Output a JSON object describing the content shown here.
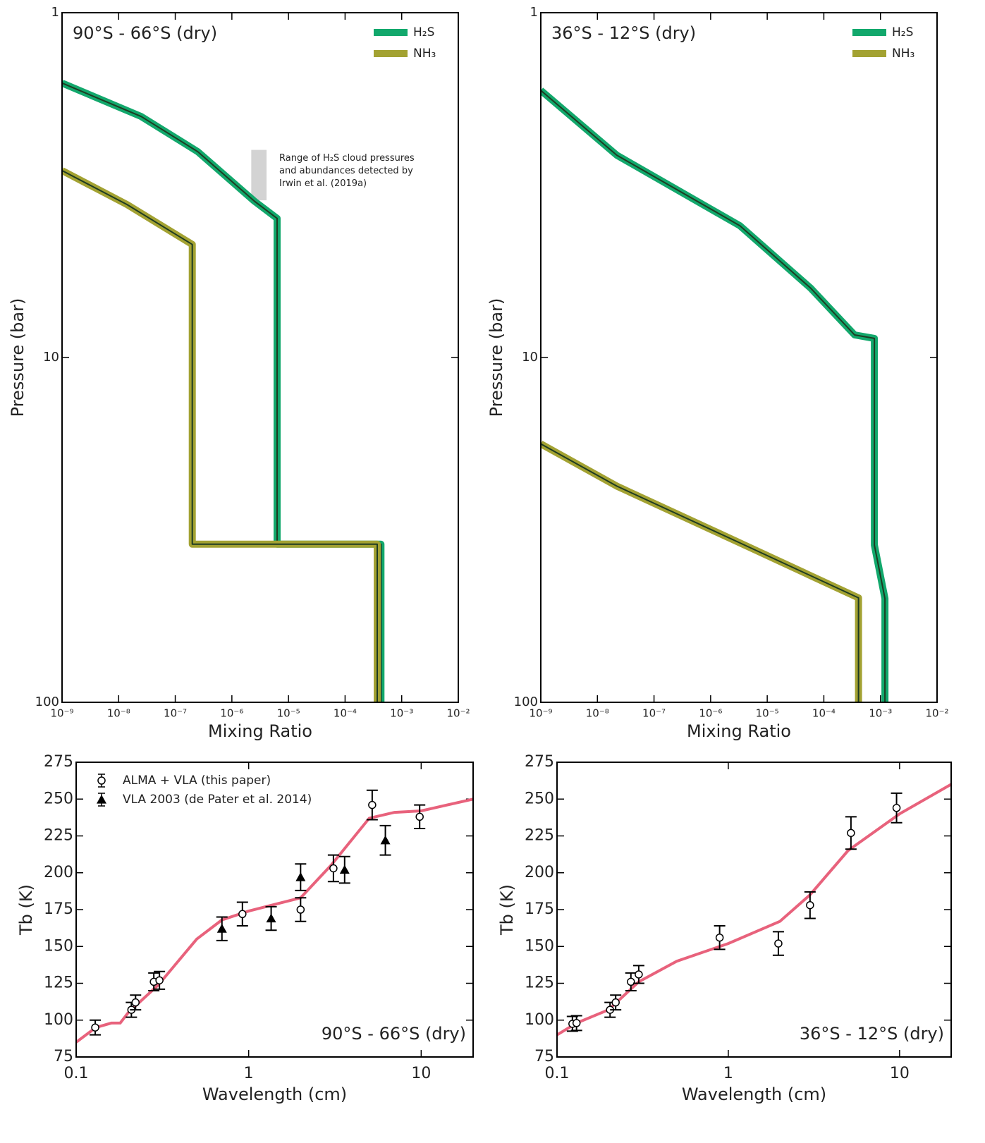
{
  "chart_data": [
    {
      "type": "line",
      "title": "90°S - 66°S (dry)",
      "title_position": "upper left",
      "xlabel": "Mixing Ratio",
      "ylabel": "Pressure (bar)",
      "xlog": true,
      "ylog": true,
      "y_inverted": true,
      "legend": "upper right",
      "xlim": [
        1e-09,
        0.01
      ],
      "ylim": [
        1,
        100
      ],
      "xticks": [
        {
          "value": 1e-09,
          "label": "10⁻⁹"
        },
        {
          "value": 1e-08,
          "label": "10⁻⁸"
        },
        {
          "value": 1e-07,
          "label": "10⁻⁷"
        },
        {
          "value": 1e-06,
          "label": "10⁻⁶"
        },
        {
          "value": 1e-05,
          "label": "10⁻⁵"
        },
        {
          "value": 0.0001,
          "label": "10⁻⁴"
        },
        {
          "value": 0.001,
          "label": "10⁻³"
        },
        {
          "value": 0.01,
          "label": "10⁻²"
        }
      ],
      "yticks": [
        1,
        10,
        100
      ],
      "series": [
        {
          "name": "H₂S",
          "color": "#12a86c",
          "x": [
            1e-09,
            2.5e-08,
            2.5e-07,
            2.5e-06,
            6.3e-06,
            6.3e-06,
            0.00043,
            0.00043
          ],
          "values": [
            1.6,
            2.0,
            2.53,
            3.52,
            3.95,
            34.8,
            34.8,
            100
          ]
        },
        {
          "name": "NH₃",
          "color": "#a3a232",
          "x": [
            1e-09,
            1.4e-08,
            2e-07,
            2e-07,
            0.00037,
            0.00037
          ],
          "values": [
            2.87,
            3.6,
            4.7,
            34.8,
            34.8,
            100
          ]
        }
      ],
      "range_box": {
        "x": [
          2.2e-06,
          4.1e-06
        ],
        "y": [
          2.5,
          3.5
        ],
        "color": "#d3d3d3"
      },
      "annotation": [
        "Range of H₂S cloud pressures",
        "and abundances detected by",
        "Irwin et al. (2019a)"
      ]
    },
    {
      "type": "line",
      "title": "36°S - 12°S (dry)",
      "title_position": "upper left",
      "xlabel": "Mixing Ratio",
      "ylabel": "Pressure (bar)",
      "xlog": true,
      "ylog": true,
      "y_inverted": true,
      "legend": "upper right",
      "xlim": [
        1e-09,
        0.01
      ],
      "ylim": [
        1,
        100
      ],
      "xticks": [
        {
          "value": 1e-09,
          "label": "10⁻⁹"
        },
        {
          "value": 1e-08,
          "label": "10⁻⁸"
        },
        {
          "value": 1e-07,
          "label": "10⁻⁷"
        },
        {
          "value": 1e-06,
          "label": "10⁻⁶"
        },
        {
          "value": 1e-05,
          "label": "10⁻⁵"
        },
        {
          "value": 0.0001,
          "label": "10⁻⁴"
        },
        {
          "value": 0.001,
          "label": "10⁻³"
        },
        {
          "value": 0.01,
          "label": "10⁻²"
        }
      ],
      "yticks": [
        1,
        10,
        100
      ],
      "series": [
        {
          "name": "H₂S",
          "color": "#12a86c",
          "x": [
            1e-09,
            2.2e-08,
            3.3e-06,
            5.9e-05,
            0.00035,
            0.00078,
            0.00078,
            0.0012,
            0.0012
          ],
          "values": [
            1.68,
            2.59,
            4.15,
            6.3,
            8.6,
            8.8,
            35,
            50,
            100
          ]
        },
        {
          "name": "NH₃",
          "color": "#a3a232",
          "x": [
            1e-09,
            2.2e-08,
            3.3e-06,
            0.00041,
            0.00041
          ],
          "values": [
            17.8,
            23.6,
            34.5,
            49.8,
            100
          ]
        }
      ]
    },
    {
      "type": "errorbar",
      "title": "90°S - 66°S (dry)",
      "title_position": "lower right",
      "xlabel": "Wavelength (cm)",
      "ylabel": "Tb (K)",
      "xlog": true,
      "legend": "upper left",
      "xlim": [
        0.1,
        20
      ],
      "ylim": [
        75,
        275
      ],
      "xticks": [
        0.1,
        1,
        10
      ],
      "yticks": [
        75,
        100,
        125,
        150,
        175,
        200,
        225,
        250,
        275
      ],
      "series": [
        {
          "style": "line",
          "color": "#e8627c",
          "x": [
            0.1,
            0.13,
            0.16,
            0.18,
            0.2,
            0.3,
            0.5,
            0.7,
            1,
            2,
            3,
            5,
            7,
            10,
            20
          ],
          "values": [
            85,
            95,
            98,
            98,
            105,
            124,
            155,
            168,
            174,
            183,
            205,
            237,
            241,
            242,
            250
          ]
        },
        {
          "name": "ALMA + VLA (this paper)",
          "style": "circle",
          "color": "#000000",
          "x": [
            0.129,
            0.209,
            0.221,
            0.282,
            0.304,
            0.92,
            2.0,
            3.1,
            5.2,
            9.8
          ],
          "values": [
            95,
            107,
            112,
            126,
            127,
            172,
            175,
            203,
            246,
            238
          ],
          "errors": [
            5,
            5,
            5,
            6,
            6,
            8,
            8,
            9,
            10,
            8
          ]
        },
        {
          "name": "VLA 2003 (de Pater et al. 2014)",
          "style": "triangle",
          "color": "#000000",
          "x": [
            0.7,
            1.35,
            2.0,
            3.6,
            6.2
          ],
          "values": [
            162,
            169,
            197,
            202,
            222
          ],
          "errors": [
            8,
            8,
            9,
            9,
            10
          ]
        }
      ]
    },
    {
      "type": "errorbar",
      "title": "36°S - 12°S (dry)",
      "title_position": "lower right",
      "xlabel": "Wavelength (cm)",
      "ylabel": "Tb (K)",
      "xlog": true,
      "xlim": [
        0.1,
        20
      ],
      "ylim": [
        75,
        275
      ],
      "xticks": [
        0.1,
        1,
        10
      ],
      "yticks": [
        75,
        100,
        125,
        150,
        175,
        200,
        225,
        250,
        275
      ],
      "series": [
        {
          "style": "line",
          "color": "#e8627c",
          "x": [
            0.1,
            0.13,
            0.2,
            0.3,
            0.5,
            1,
            2,
            3,
            5,
            10,
            20
          ],
          "values": [
            90,
            98,
            107,
            126,
            140,
            152,
            167,
            185,
            215,
            240,
            260
          ]
        },
        {
          "style": "circle",
          "color": "#000000",
          "x": [
            0.123,
            0.13,
            0.204,
            0.22,
            0.27,
            0.3,
            0.89,
            1.96,
            3.0,
            5.2,
            9.6
          ],
          "values": [
            97.5,
            98,
            107,
            112,
            126,
            131,
            156,
            152,
            178,
            227,
            244
          ],
          "errors": [
            5,
            5,
            5,
            5,
            6,
            6,
            8,
            8,
            9,
            11,
            10
          ]
        }
      ]
    }
  ]
}
